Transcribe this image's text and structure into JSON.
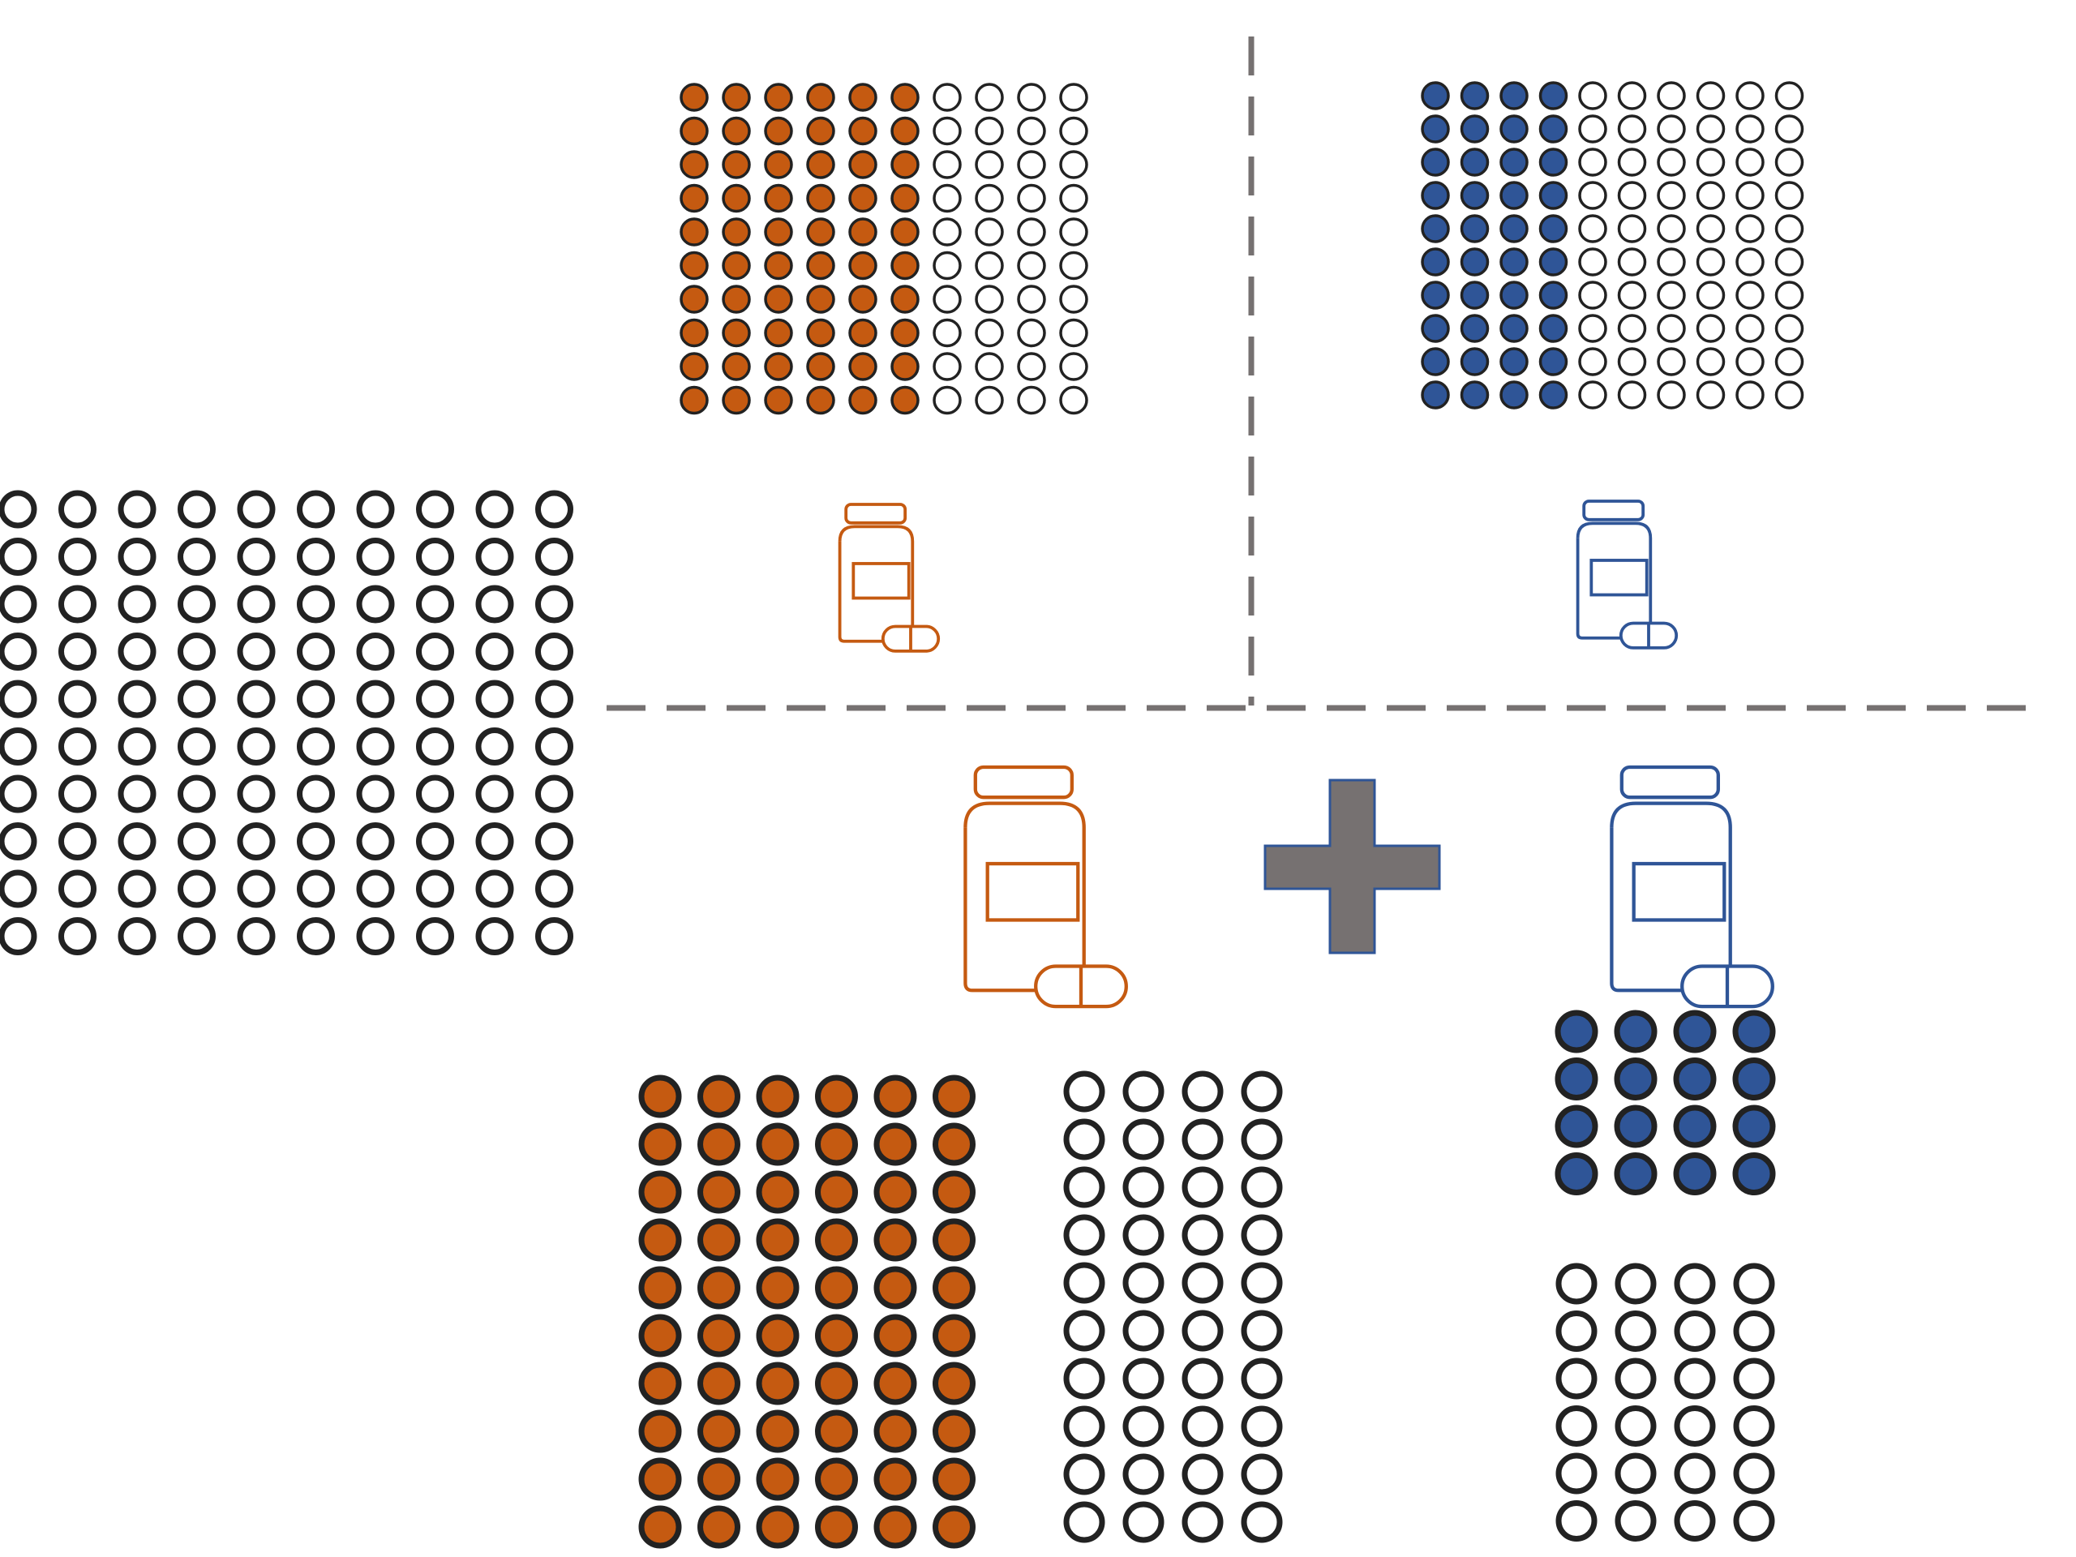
{
  "colors": {
    "drug_a": "#c55a11",
    "drug_b": "#2f5597",
    "empty": "#ffffff",
    "outline": "#222222",
    "divider": "#767171",
    "plus": "#767171",
    "plus_outline": "#2f5597"
  },
  "icons": {
    "drug_a": "pill-bottle-icon",
    "drug_b": "pill-bottle-icon",
    "combine": "plus-icon"
  },
  "population": {
    "total": 100,
    "responders": 0
  },
  "drug_a_alone": {
    "total": 100,
    "responders": 60,
    "response_fraction": 0.6
  },
  "drug_b_alone": {
    "total": 100,
    "responders": 40,
    "response_fraction": 0.4
  },
  "combination": {
    "drug_a_responders": 60,
    "drug_a_nonresponders": 40,
    "drug_b_responders_among_a_nonresponders": 16,
    "drug_b_nonresponders_among_a_nonresponders": 24
  }
}
